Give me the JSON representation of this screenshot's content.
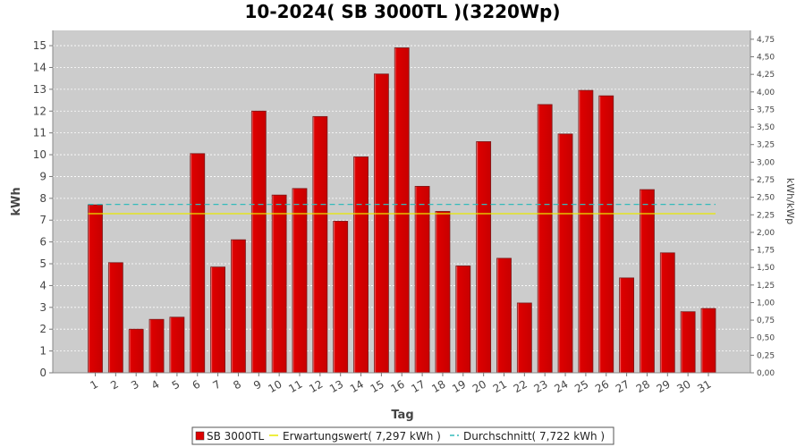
{
  "chart_data": {
    "type": "bar",
    "title": "10-2024( SB 3000TL )(3220Wp)",
    "xlabel": "Tag",
    "ylabel": "kWh",
    "ylabel_right": "kWh/kWp",
    "ylim": [
      0,
      15.7
    ],
    "yticks": [
      0,
      1,
      2,
      3,
      4,
      5,
      6,
      7,
      8,
      9,
      10,
      11,
      12,
      13,
      14,
      15
    ],
    "y2lim": [
      0,
      4.876
    ],
    "y2ticks": [
      "0,00",
      "0,25",
      "0,50",
      "0,75",
      "1,00",
      "1,25",
      "1,50",
      "1,75",
      "2,00",
      "2,25",
      "2,50",
      "2,75",
      "3,00",
      "3,25",
      "3,50",
      "3,75",
      "4,00",
      "4,25",
      "4,50",
      "4,75"
    ],
    "categories": [
      "1",
      "2",
      "3",
      "4",
      "5",
      "6",
      "7",
      "8",
      "9",
      "10",
      "11",
      "12",
      "13",
      "14",
      "15",
      "16",
      "17",
      "18",
      "19",
      "20",
      "21",
      "22",
      "23",
      "24",
      "25",
      "26",
      "27",
      "28",
      "29",
      "30",
      "31"
    ],
    "series": [
      {
        "name": "SB 3000TL",
        "color": "#dd0000",
        "values": [
          7.7,
          5.05,
          2.0,
          2.45,
          2.55,
          10.05,
          4.85,
          6.1,
          12.0,
          8.15,
          8.45,
          11.75,
          6.95,
          9.9,
          13.7,
          14.9,
          8.55,
          7.4,
          4.9,
          10.6,
          5.25,
          3.2,
          12.3,
          10.95,
          12.95,
          12.7,
          4.35,
          8.4,
          5.5,
          2.8,
          2.95
        ]
      }
    ],
    "reference_lines": [
      {
        "name": "Erwartungswert",
        "label": "Erwartungswert( 7,297 kWh )",
        "value": 7.297,
        "color": "#e8e800"
      },
      {
        "name": "Durchschnitt",
        "label": "Durchschnitt( 7,722 kWh )",
        "value": 7.722,
        "color": "#33bbbb"
      }
    ],
    "grid": true,
    "legend_position": "bottom",
    "plot_background": "#cccccc"
  }
}
